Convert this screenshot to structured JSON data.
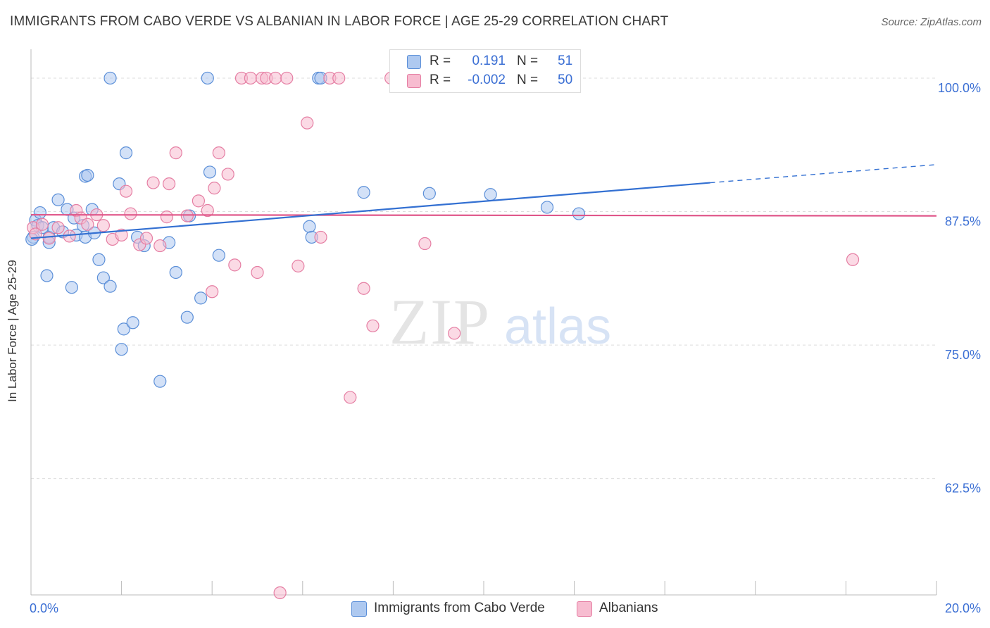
{
  "title": "IMMIGRANTS FROM CABO VERDE VS ALBANIAN IN LABOR FORCE | AGE 25-29 CORRELATION CHART",
  "source": "Source: ZipAtlas.com",
  "watermark": {
    "zip": "ZIP",
    "atlas": "atlas"
  },
  "legend": {
    "r_label": "R =",
    "n_label": "N =",
    "series": [
      {
        "r": "0.191",
        "n": "51"
      },
      {
        "r": "-0.002",
        "n": "50"
      }
    ]
  },
  "bottom_legend": [
    "Immigrants from Cabo Verde",
    "Albanians"
  ],
  "chart_data": {
    "type": "scatter",
    "title": "IMMIGRANTS FROM CABO VERDE VS ALBANIAN IN LABOR FORCE | AGE 25-29 CORRELATION CHART",
    "xlabel": "",
    "ylabel": "In Labor Force | Age 25-29",
    "xlim": [
      0,
      20
    ],
    "ylim": [
      51.6,
      102.7
    ],
    "x_tick_labels": [
      {
        "value": 0,
        "label": "0.0%"
      },
      {
        "value": 20,
        "label": "20.0%"
      }
    ],
    "y_tick_labels": [
      {
        "value": 100,
        "label": "100.0%"
      },
      {
        "value": 87.5,
        "label": "87.5%"
      },
      {
        "value": 75,
        "label": "75.0%"
      },
      {
        "value": 62.5,
        "label": "62.5%"
      }
    ],
    "x_minor_ticks": [
      0,
      2,
      4,
      6,
      8,
      10,
      12,
      14,
      16,
      18,
      20
    ],
    "grid": true,
    "legend_position": "top-center",
    "colors": {
      "cabo_fill": "#aec9f0",
      "cabo_stroke": "#5b8fd8",
      "cabo_line": "#3370d2",
      "alb_fill": "#f7bcd0",
      "alb_stroke": "#e57ea3",
      "alb_line": "#e0578a",
      "value_text": "#3b6fd4"
    },
    "series": [
      {
        "name": "Immigrants from Cabo Verde",
        "trend": {
          "x": [
            0,
            15
          ],
          "y": [
            85.0,
            90.2
          ],
          "dashed_to": [
            20,
            91.9
          ]
        },
        "points": [
          [
            0.05,
            85.1
          ],
          [
            0.1,
            86.7
          ],
          [
            0.15,
            86.2
          ],
          [
            0.2,
            87.4
          ],
          [
            0.25,
            86.0
          ],
          [
            0.35,
            81.5
          ],
          [
            0.4,
            85.1
          ],
          [
            0.5,
            86.0
          ],
          [
            0.6,
            88.6
          ],
          [
            0.7,
            85.6
          ],
          [
            0.8,
            87.7
          ],
          [
            0.9,
            80.4
          ],
          [
            0.95,
            86.9
          ],
          [
            1.0,
            85.3
          ],
          [
            1.15,
            86.2
          ],
          [
            1.2,
            85.1
          ],
          [
            1.2,
            90.8
          ],
          [
            1.25,
            90.9
          ],
          [
            1.35,
            87.7
          ],
          [
            1.4,
            85.5
          ],
          [
            1.5,
            83.0
          ],
          [
            1.6,
            81.3
          ],
          [
            1.75,
            80.5
          ],
          [
            1.75,
            100.0
          ],
          [
            1.95,
            90.1
          ],
          [
            2.0,
            74.6
          ],
          [
            2.05,
            76.5
          ],
          [
            2.1,
            93.0
          ],
          [
            2.25,
            77.1
          ],
          [
            2.35,
            85.1
          ],
          [
            2.5,
            84.3
          ],
          [
            2.85,
            71.6
          ],
          [
            3.05,
            84.6
          ],
          [
            3.2,
            81.8
          ],
          [
            3.45,
            77.6
          ],
          [
            3.5,
            87.1
          ],
          [
            3.75,
            79.4
          ],
          [
            3.9,
            100.0
          ],
          [
            3.95,
            91.2
          ],
          [
            4.15,
            83.4
          ],
          [
            6.15,
            86.1
          ],
          [
            6.2,
            85.1
          ],
          [
            6.35,
            100.0
          ],
          [
            6.4,
            100.0
          ],
          [
            7.35,
            89.3
          ],
          [
            8.8,
            89.2
          ],
          [
            10.15,
            89.1
          ],
          [
            11.4,
            87.9
          ],
          [
            12.1,
            87.3
          ],
          [
            0.02,
            84.9
          ],
          [
            0.4,
            84.6
          ]
        ]
      },
      {
        "name": "Albanians",
        "trend": {
          "x": [
            0,
            20
          ],
          "y": [
            87.2,
            87.1
          ]
        },
        "points": [
          [
            0.05,
            86.0
          ],
          [
            0.1,
            85.4
          ],
          [
            0.25,
            86.3
          ],
          [
            0.4,
            85.0
          ],
          [
            0.6,
            86.0
          ],
          [
            0.85,
            85.2
          ],
          [
            1.0,
            87.6
          ],
          [
            1.1,
            86.9
          ],
          [
            1.25,
            86.3
          ],
          [
            1.45,
            87.2
          ],
          [
            1.6,
            86.2
          ],
          [
            1.8,
            84.9
          ],
          [
            2.0,
            85.3
          ],
          [
            2.1,
            89.4
          ],
          [
            2.2,
            87.3
          ],
          [
            2.4,
            84.4
          ],
          [
            2.55,
            85.0
          ],
          [
            2.7,
            90.2
          ],
          [
            2.85,
            84.3
          ],
          [
            3.0,
            87.0
          ],
          [
            3.05,
            90.1
          ],
          [
            3.2,
            93.0
          ],
          [
            3.45,
            87.1
          ],
          [
            3.7,
            88.5
          ],
          [
            3.9,
            87.6
          ],
          [
            4.0,
            80.0
          ],
          [
            4.05,
            89.7
          ],
          [
            4.15,
            93.0
          ],
          [
            4.35,
            91.0
          ],
          [
            4.5,
            82.5
          ],
          [
            4.65,
            100.0
          ],
          [
            4.85,
            100.0
          ],
          [
            5.0,
            81.8
          ],
          [
            5.1,
            100.0
          ],
          [
            5.2,
            100.0
          ],
          [
            5.4,
            100.0
          ],
          [
            5.5,
            51.8
          ],
          [
            5.65,
            100.0
          ],
          [
            5.9,
            82.4
          ],
          [
            6.1,
            95.8
          ],
          [
            6.4,
            85.1
          ],
          [
            6.6,
            100.0
          ],
          [
            6.8,
            100.0
          ],
          [
            7.05,
            70.1
          ],
          [
            7.35,
            80.3
          ],
          [
            7.55,
            76.8
          ],
          [
            7.95,
            100.0
          ],
          [
            8.7,
            84.5
          ],
          [
            9.35,
            76.1
          ],
          [
            18.15,
            83.0
          ]
        ]
      }
    ]
  }
}
